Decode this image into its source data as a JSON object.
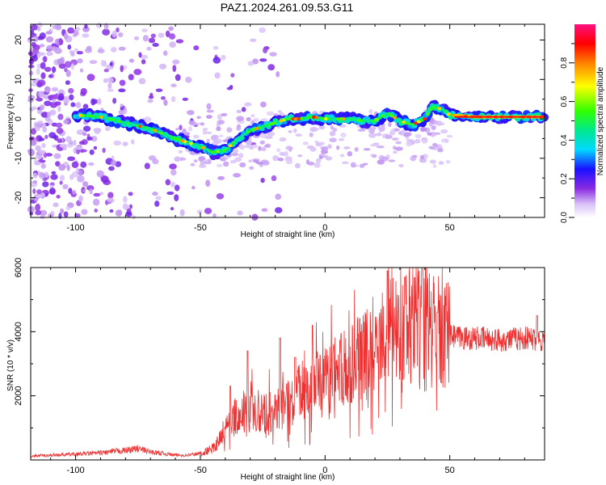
{
  "title": "PAZ1.2024.261.09.53.G11",
  "chart_data": [
    {
      "type": "heatmap",
      "xlabel": "Height of straight line (km)",
      "ylabel": "Frequency (Hz)",
      "xlim": [
        -118,
        88
      ],
      "ylim": [
        -25,
        24
      ],
      "xticks": [
        -100,
        -50,
        0,
        50
      ],
      "yticks": [
        -20,
        -10,
        0,
        10,
        20
      ],
      "colorbar": {
        "label": "Normalized spectral amplitude",
        "range": [
          0,
          1
        ],
        "ticks": [
          "0.0",
          "0.2",
          "0.4",
          "0.6",
          "0.8"
        ]
      },
      "ridge": [
        {
          "x": -100,
          "y": 1
        },
        {
          "x": -90,
          "y": 0.5
        },
        {
          "x": -80,
          "y": -1
        },
        {
          "x": -70,
          "y": -2.5
        },
        {
          "x": -60,
          "y": -5
        },
        {
          "x": -50,
          "y": -7
        },
        {
          "x": -45,
          "y": -8.5
        },
        {
          "x": -40,
          "y": -8
        },
        {
          "x": -35,
          "y": -5
        },
        {
          "x": -30,
          "y": -3
        },
        {
          "x": -25,
          "y": -2
        },
        {
          "x": -20,
          "y": -1
        },
        {
          "x": -15,
          "y": 0
        },
        {
          "x": -10,
          "y": 0
        },
        {
          "x": -5,
          "y": 0.5
        },
        {
          "x": 0,
          "y": 0
        },
        {
          "x": 10,
          "y": 0
        },
        {
          "x": 15,
          "y": -0.5
        },
        {
          "x": 20,
          "y": -0.5
        },
        {
          "x": 25,
          "y": 1.5
        },
        {
          "x": 30,
          "y": -0.5
        },
        {
          "x": 35,
          "y": -1.5
        },
        {
          "x": 40,
          "y": 0
        },
        {
          "x": 43,
          "y": 3
        },
        {
          "x": 47,
          "y": 2.5
        },
        {
          "x": 50,
          "y": 1
        },
        {
          "x": 60,
          "y": 0.5
        },
        {
          "x": 70,
          "y": 0.5
        },
        {
          "x": 88,
          "y": 0.5
        }
      ]
    },
    {
      "type": "line",
      "xlabel": "Height of straight line (km)",
      "ylabel": "SNR (10 * v/v)",
      "xlim": [
        -118,
        88
      ],
      "ylim": [
        0,
        6000
      ],
      "xticks": [
        -100,
        -50,
        0,
        50
      ],
      "yticks": [
        2000,
        4000,
        6000
      ],
      "series": [
        {
          "color": "#f03030",
          "x": [
            -118,
            -110,
            -100,
            -90,
            -80,
            -75,
            -70,
            -60,
            -55,
            -50,
            -45,
            -40,
            -35,
            -30,
            -25,
            -20,
            -15,
            -10,
            -5,
            0,
            5,
            10,
            15,
            20,
            25,
            30,
            35,
            40,
            45,
            50,
            55,
            60,
            70,
            80,
            88
          ],
          "y": [
            120,
            150,
            180,
            220,
            300,
            350,
            250,
            150,
            150,
            200,
            350,
            900,
            1500,
            1600,
            1500,
            1500,
            1700,
            2100,
            2300,
            2400,
            2700,
            2900,
            3200,
            3600,
            3900,
            4100,
            4300,
            4500,
            4000,
            3850,
            3800,
            3800,
            3750,
            3800,
            3750
          ],
          "peaks": [
            {
              "x": -38,
              "y": 2300
            },
            {
              "x": -31,
              "y": 3400
            },
            {
              "x": -18,
              "y": 3800
            },
            {
              "x": -12,
              "y": 3200
            },
            {
              "x": -5,
              "y": 4200
            },
            {
              "x": 15,
              "y": 4000
            },
            {
              "x": 25,
              "y": 5900
            },
            {
              "x": 32,
              "y": 5700
            },
            {
              "x": 39,
              "y": 6000
            },
            {
              "x": 45,
              "y": 4600
            },
            {
              "x": 85,
              "y": 4500
            }
          ]
        }
      ]
    }
  ]
}
